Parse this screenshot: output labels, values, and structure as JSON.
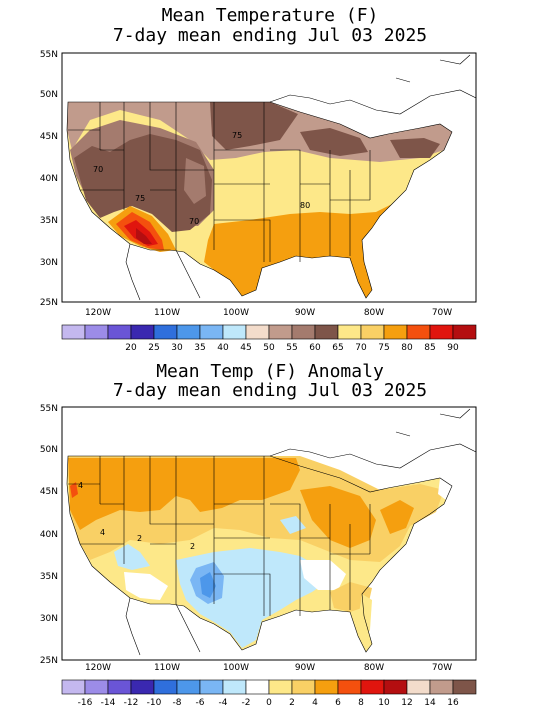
{
  "panel1": {
    "title_line1": "Mean Temperature (F)",
    "title_line2": "7-day mean ending Jul 03 2025",
    "lat_labels": [
      "55N",
      "50N",
      "45N",
      "40N",
      "35N",
      "30N",
      "25N"
    ],
    "lon_labels": [
      "120W",
      "110W",
      "100W",
      "90W",
      "80W",
      "70W"
    ],
    "contour_labels": [
      "75",
      "70",
      "75",
      "70",
      "80"
    ],
    "colorbar_colors": [
      "#c4b8ef",
      "#9c8ce8",
      "#6a55d6",
      "#3a28b0",
      "#2f6fdc",
      "#4d97ea",
      "#7ab6f4",
      "#bfe8fb",
      "#f3dccb",
      "#c19b8c",
      "#a47b6e",
      "#7e5549",
      "#fde889",
      "#f9d065",
      "#f59f0f",
      "#f4500e",
      "#e0150e",
      "#b40e10"
    ],
    "colorbar_labels": [
      "20",
      "25",
      "30",
      "35",
      "40",
      "45",
      "50",
      "55",
      "60",
      "65",
      "70",
      "75",
      "80",
      "85",
      "90"
    ]
  },
  "panel2": {
    "title_line1": "Mean Temp (F) Anomaly",
    "title_line2": "7-day mean ending Jul 03 2025",
    "lat_labels": [
      "55N",
      "50N",
      "45N",
      "40N",
      "35N",
      "30N",
      "25N"
    ],
    "lon_labels": [
      "120W",
      "110W",
      "100W",
      "90W",
      "80W",
      "70W"
    ],
    "contour_labels": [
      "4",
      "2",
      "2",
      "4"
    ],
    "colorbar_colors": [
      "#c4b8ef",
      "#9c8ce8",
      "#6a55d6",
      "#3a28b0",
      "#2f6fdc",
      "#4d97ea",
      "#7ab6f4",
      "#bfe8fb",
      "#ffffff",
      "#fde889",
      "#f9d065",
      "#f59f0f",
      "#f4500e",
      "#e0150e",
      "#b40e10",
      "#f3dccb",
      "#c19b8c",
      "#7e5549"
    ],
    "colorbar_labels": [
      "-16",
      "-14",
      "-12",
      "-10",
      "-8",
      "-6",
      "-4",
      "-2",
      "0",
      "2",
      "4",
      "6",
      "8",
      "10",
      "12",
      "14",
      "16"
    ]
  }
}
